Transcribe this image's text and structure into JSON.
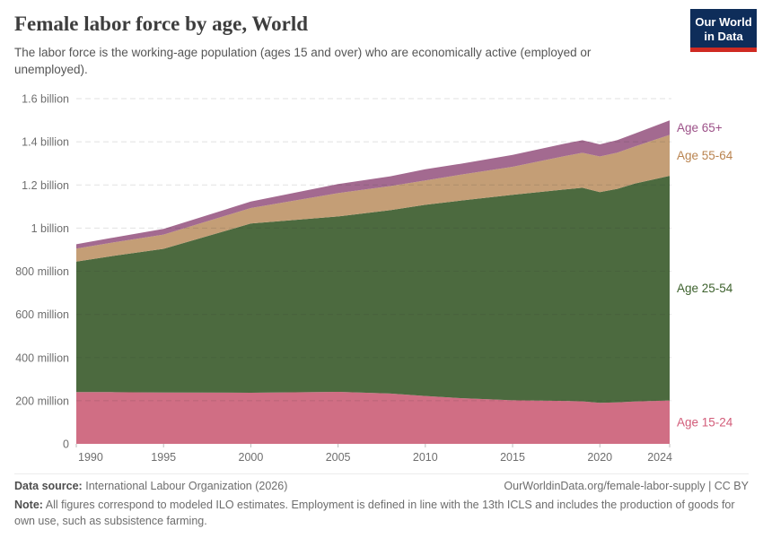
{
  "header": {
    "logo": {
      "line1": "Our World",
      "line2": "in Data"
    }
  },
  "chart_data": {
    "type": "area",
    "stacked": true,
    "title": "Female labor force by age, World",
    "subtitle": "The labor force is the working-age population (ages 15 and over) who are economically active (employed or unemployed).",
    "xlabel": "",
    "ylabel": "",
    "unit": "people (millions)",
    "grid": "dashed",
    "legend_position": "right-of-plot",
    "ylim": [
      0,
      1600
    ],
    "x": [
      1990,
      1992,
      1995,
      2000,
      2005,
      2008,
      2010,
      2012,
      2015,
      2018,
      2019,
      2020,
      2021,
      2022,
      2024
    ],
    "series": [
      {
        "name": "Age 15-24",
        "color": "#d06e84",
        "label_color": "#d25c79",
        "values": [
          240,
          240,
          238,
          237,
          241,
          233,
          222,
          212,
          202,
          199,
          197,
          190,
          192,
          196,
          201
        ]
      },
      {
        "name": "Age 25-54",
        "color": "#4c6a3f",
        "label_color": "#3e622e",
        "values": [
          605,
          630,
          666,
          784,
          813,
          850,
          886,
          915,
          952,
          980,
          990,
          977,
          990,
          1010,
          1041
        ]
      },
      {
        "name": "Age 55-64",
        "color": "#c49e76",
        "label_color": "#b9834f",
        "values": [
          60,
          62,
          66,
          72,
          108,
          112,
          113,
          120,
          130,
          155,
          162,
          165,
          168,
          172,
          190
        ]
      },
      {
        "name": "Age 65+",
        "color": "#a36a90",
        "label_color": "#9c5188",
        "values": [
          20,
          22,
          26,
          30,
          42,
          45,
          52,
          51,
          55,
          58,
          58,
          56,
          58,
          60,
          67
        ]
      }
    ],
    "yticks": [
      {
        "value": 0,
        "label": "0"
      },
      {
        "value": 200,
        "label": "200 million"
      },
      {
        "value": 400,
        "label": "400 million"
      },
      {
        "value": 600,
        "label": "600 million"
      },
      {
        "value": 800,
        "label": "800 million"
      },
      {
        "value": 1000,
        "label": "1 billion"
      },
      {
        "value": 1200,
        "label": "1.2 billion"
      },
      {
        "value": 1400,
        "label": "1.4 billion"
      },
      {
        "value": 1600,
        "label": "1.6 billion"
      }
    ],
    "xticks": [
      1990,
      1995,
      2000,
      2005,
      2010,
      2015,
      2020,
      2024
    ]
  },
  "footer": {
    "source_label": "Data source:",
    "source": "International Labour Organization (2026)",
    "link": "OurWorldinData.org/female-labor-supply | CC BY",
    "note_label": "Note:",
    "note": "All figures correspond to modeled ILO estimates. Employment is defined in line with the 13th ICLS and includes the production of goods for own use, such as subsistence farming."
  }
}
